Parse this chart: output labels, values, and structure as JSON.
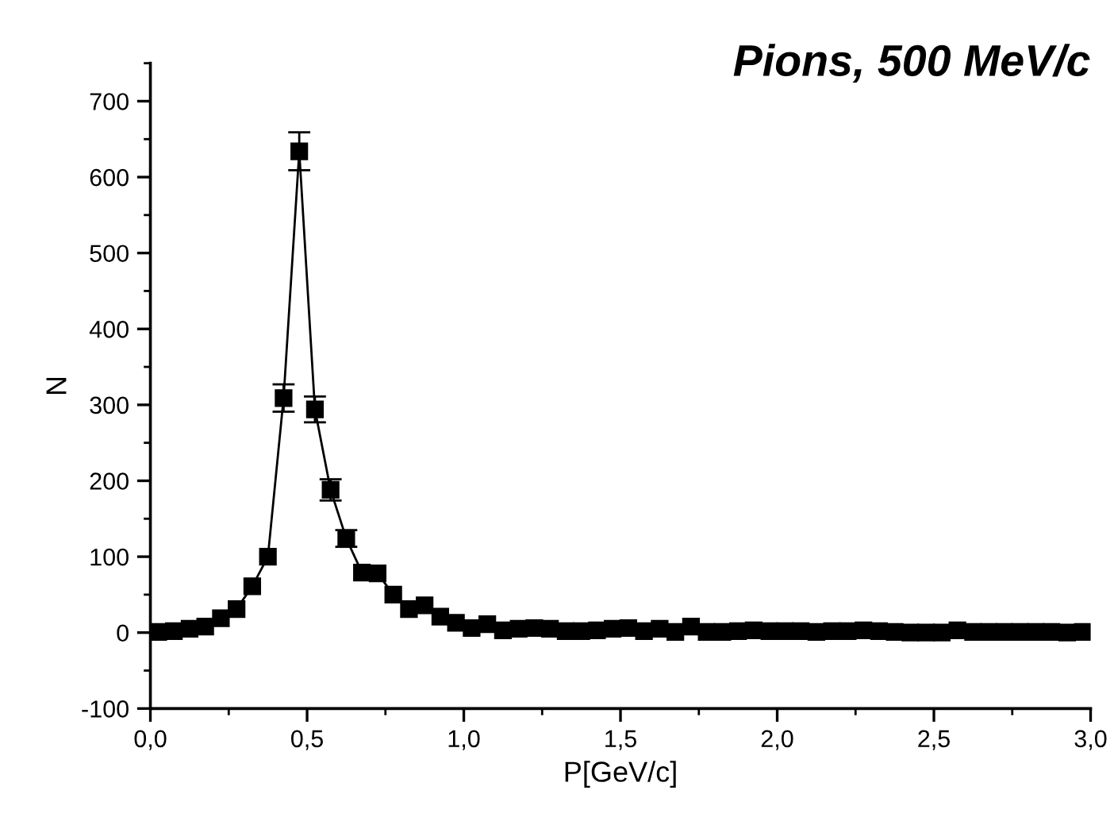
{
  "chart_data": {
    "type": "line",
    "title": "Pions, 500 MeV/c",
    "xlabel": "P[GeV/c]",
    "ylabel": "N",
    "x": [
      0.025,
      0.075,
      0.125,
      0.175,
      0.225,
      0.275,
      0.325,
      0.375,
      0.425,
      0.475,
      0.525,
      0.575,
      0.625,
      0.675,
      0.725,
      0.775,
      0.825,
      0.875,
      0.925,
      0.975,
      1.025,
      1.075,
      1.125,
      1.175,
      1.225,
      1.275,
      1.325,
      1.375,
      1.425,
      1.475,
      1.525,
      1.575,
      1.625,
      1.675,
      1.725,
      1.775,
      1.825,
      1.875,
      1.925,
      1.975,
      2.025,
      2.075,
      2.125,
      2.175,
      2.225,
      2.275,
      2.325,
      2.375,
      2.425,
      2.475,
      2.525,
      2.575,
      2.625,
      2.675,
      2.725,
      2.775,
      2.825,
      2.875,
      2.925,
      2.975
    ],
    "series": [
      {
        "color": "#000000",
        "values": [
          1,
          2,
          5,
          8,
          19,
          31,
          61,
          100,
          309,
          634,
          294,
          188,
          124,
          79,
          78,
          50,
          31,
          36,
          21,
          13,
          6,
          11,
          3,
          5,
          6,
          5,
          2,
          2,
          3,
          5,
          6,
          2,
          5,
          1,
          8,
          1,
          1,
          2,
          3,
          2,
          2,
          2,
          1,
          2,
          2,
          3,
          2,
          1,
          0,
          0,
          0,
          3,
          1,
          1,
          1,
          1,
          1,
          1,
          0,
          1
        ],
        "errors": [
          null,
          null,
          null,
          null,
          null,
          null,
          null,
          null,
          18,
          25,
          17,
          14,
          11,
          null,
          null,
          null,
          null,
          null,
          null,
          null,
          null,
          null,
          null,
          null,
          null,
          null,
          null,
          null,
          null,
          null,
          null,
          null,
          null,
          null,
          null,
          null,
          null,
          null,
          null,
          null,
          null,
          null,
          null,
          null,
          null,
          null,
          null,
          null,
          null,
          null,
          null,
          null,
          null,
          null,
          null,
          null,
          null,
          null,
          null,
          null
        ]
      }
    ],
    "xlim": [
      0,
      3
    ],
    "xticks": [
      {
        "value": 0,
        "label": "0,0"
      },
      {
        "value": 0.5,
        "label": "0,5"
      },
      {
        "value": 1,
        "label": "1,0"
      },
      {
        "value": 1.5,
        "label": "1,5"
      },
      {
        "value": 2,
        "label": "2,0"
      },
      {
        "value": 2.5,
        "label": "2,5"
      },
      {
        "value": 3,
        "label": "3,0"
      }
    ],
    "ylim": [
      -100,
      750
    ],
    "yticks": [
      -100,
      0,
      100,
      200,
      300,
      400,
      500,
      600,
      700
    ],
    "marker": "square",
    "line_style": "solid",
    "grid": false,
    "legend": false
  }
}
